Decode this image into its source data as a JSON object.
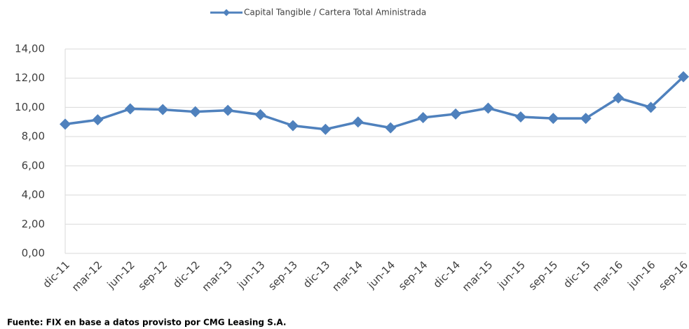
{
  "chart_data": {
    "type": "line",
    "categories": [
      "dic-11",
      "mar-12",
      "jun-12",
      "sep-12",
      "dic-12",
      "mar-13",
      "jun-13",
      "sep-13",
      "dic-13",
      "mar-14",
      "jun-14",
      "sep-14",
      "dic-14",
      "mar-15",
      "jun-15",
      "sep-15",
      "dic-15",
      "mar-16",
      "jun-16",
      "sep-16"
    ],
    "series": [
      {
        "name": "Capital Tangible / Cartera Total Aministrada",
        "color": "#4f81bd",
        "values": [
          8.85,
          9.15,
          9.9,
          9.85,
          9.7,
          9.8,
          9.5,
          8.75,
          8.5,
          9.0,
          8.6,
          9.3,
          9.55,
          9.95,
          9.35,
          9.25,
          9.25,
          10.65,
          10.0,
          12.1
        ]
      }
    ],
    "ylim": [
      0,
      14
    ],
    "yticks": [
      {
        "value": 0,
        "label": "0,00"
      },
      {
        "value": 2,
        "label": "2,00"
      },
      {
        "value": 4,
        "label": "4,00"
      },
      {
        "value": 6,
        "label": "6,00"
      },
      {
        "value": 8,
        "label": "8,00"
      },
      {
        "value": 10,
        "label": "10,00"
      },
      {
        "value": 12,
        "label": "12,00"
      },
      {
        "value": 14,
        "label": "14,00"
      }
    ],
    "grid": true,
    "legend": "top",
    "source": "Fuente: FIX en base a datos provisto por CMG Leasing S.A."
  }
}
